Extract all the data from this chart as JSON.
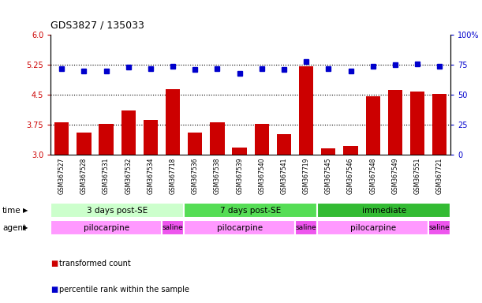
{
  "title": "GDS3827 / 135033",
  "samples": [
    "GSM367527",
    "GSM367528",
    "GSM367531",
    "GSM367532",
    "GSM367534",
    "GSM367718",
    "GSM367536",
    "GSM367538",
    "GSM367539",
    "GSM367540",
    "GSM367541",
    "GSM367719",
    "GSM367545",
    "GSM367546",
    "GSM367548",
    "GSM367549",
    "GSM367551",
    "GSM367721"
  ],
  "bar_values": [
    3.82,
    3.55,
    3.78,
    4.12,
    3.88,
    4.65,
    3.55,
    3.82,
    3.18,
    3.78,
    3.52,
    5.22,
    3.17,
    3.22,
    4.47,
    4.62,
    4.58,
    4.52
  ],
  "dot_values": [
    72,
    70,
    70,
    73,
    72,
    74,
    71,
    72,
    68,
    72,
    71,
    78,
    72,
    70,
    74,
    75,
    76,
    74
  ],
  "bar_color": "#cc0000",
  "dot_color": "#0000cc",
  "ymin": 3.0,
  "ymax": 6.0,
  "ylim_left": [
    3.0,
    6.0
  ],
  "ylim_right": [
    0,
    100
  ],
  "yticks_left": [
    3.0,
    3.75,
    4.5,
    5.25,
    6.0
  ],
  "yticks_right": [
    0,
    25,
    50,
    75,
    100
  ],
  "hlines": [
    3.75,
    4.5,
    5.25
  ],
  "time_groups": [
    {
      "label": "3 days post-SE",
      "start": 0,
      "end": 5,
      "color": "#ccffcc"
    },
    {
      "label": "7 days post-SE",
      "start": 6,
      "end": 11,
      "color": "#55dd55"
    },
    {
      "label": "immediate",
      "start": 12,
      "end": 17,
      "color": "#33bb33"
    }
  ],
  "agent_groups": [
    {
      "label": "pilocarpine",
      "start": 0,
      "end": 4,
      "color": "#ff99ff"
    },
    {
      "label": "saline",
      "start": 5,
      "end": 5,
      "color": "#ee55ee"
    },
    {
      "label": "pilocarpine",
      "start": 6,
      "end": 10,
      "color": "#ff99ff"
    },
    {
      "label": "saline",
      "start": 11,
      "end": 11,
      "color": "#ee55ee"
    },
    {
      "label": "pilocarpine",
      "start": 12,
      "end": 16,
      "color": "#ff99ff"
    },
    {
      "label": "saline",
      "start": 17,
      "end": 17,
      "color": "#ee55ee"
    }
  ],
  "legend_bar_label": "transformed count",
  "legend_dot_label": "percentile rank within the sample",
  "background_color": "#ffffff",
  "tick_area_bg": "#d8d8d8"
}
